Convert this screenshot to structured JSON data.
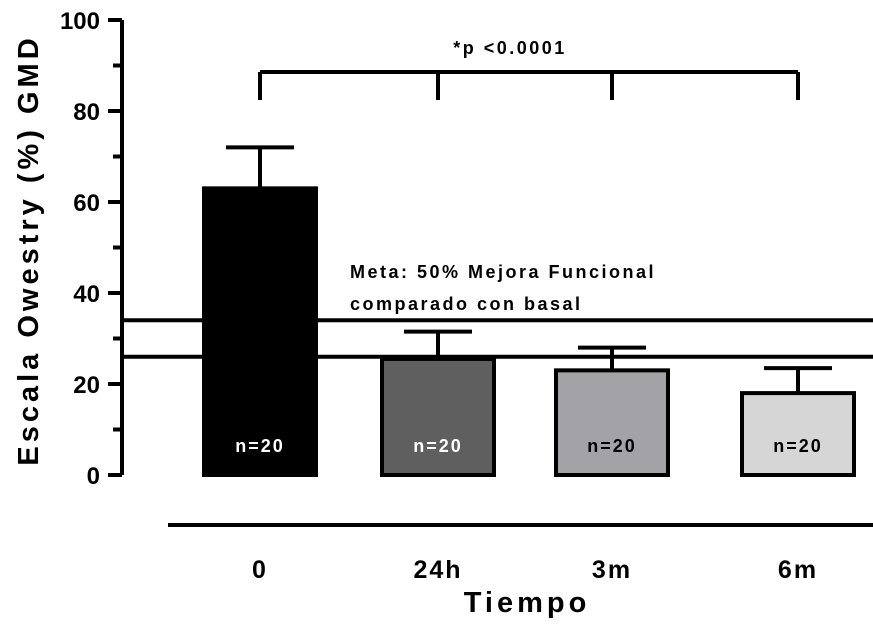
{
  "chart_data": {
    "type": "bar",
    "categories": [
      "0",
      "24h",
      "3m",
      "6m"
    ],
    "values": [
      63,
      25.5,
      23,
      18
    ],
    "errors": [
      9,
      6,
      5,
      5.5
    ],
    "n_labels": [
      "n=20",
      "n=20",
      "n=20",
      "n=20"
    ],
    "bar_colors": [
      "#000000",
      "#5f5f5f",
      "#a3a3a7",
      "#d6d6d6"
    ],
    "n_label_colors": [
      "#ffffff",
      "#ffffff",
      "#000000",
      "#000000"
    ],
    "xlabel": "Tiempo",
    "ylabel": "Escala Owestry (%) GMD",
    "ylim": [
      0,
      100
    ],
    "yticks": [
      "0",
      "20",
      "40",
      "60",
      "80",
      "100"
    ],
    "goal_band": [
      26,
      34
    ],
    "goal_text_line1": "Meta: 50% Mejora Funcional",
    "goal_text_line2": "comparado con basal",
    "significance": "*p <0.0001"
  }
}
